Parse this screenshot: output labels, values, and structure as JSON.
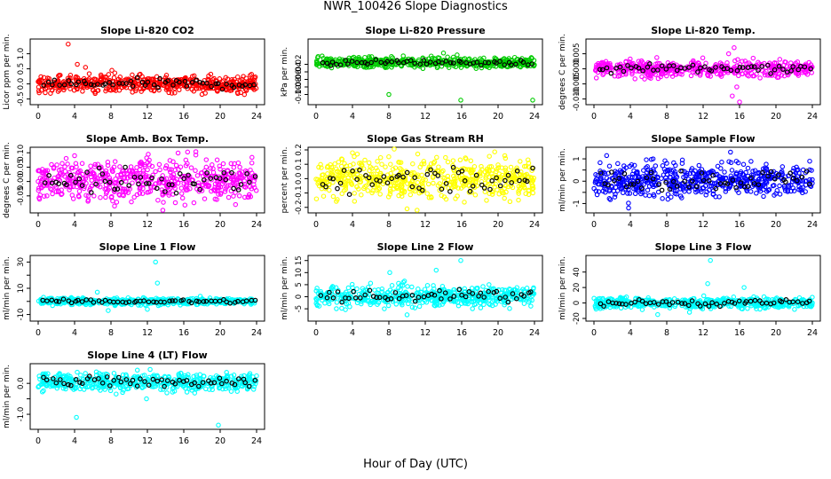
{
  "figure": {
    "title": "NWR_100426  Slope Diagnostics",
    "xlabel": "Hour of Day (UTC)"
  },
  "chart_data": [
    {
      "type": "scatter",
      "title": "Slope Li-820 CO2",
      "ylabel": "Licor ppm per min.",
      "xlim": [
        0,
        24
      ],
      "xticks": [
        "0",
        "4",
        "8",
        "12",
        "16",
        "20",
        "24"
      ],
      "ylim": [
        -0.6,
        1.4
      ],
      "yticks": [
        -0.5,
        0,
        0.5,
        1
      ],
      "ytick_labels": [
        "-0.5",
        "0.0",
        "0.5",
        "1.0"
      ],
      "color": "#ff0000",
      "series_center": 0.0,
      "series_spread": 0.14,
      "outliers": [
        {
          "x": 3.3,
          "y": 1.32
        },
        {
          "x": 4.3,
          "y": 0.65
        },
        {
          "x": 5.2,
          "y": 0.55
        },
        {
          "x": 2.2,
          "y": -0.25
        },
        {
          "x": 8.1,
          "y": 0.45
        }
      ],
      "n_points": 520,
      "n_black": 55
    },
    {
      "type": "scatter",
      "title": "Slope Li-820 Pressure",
      "ylabel": "kPa per min.",
      "xlim": [
        0,
        24
      ],
      "xticks": [
        "0",
        "4",
        "8",
        "12",
        "16",
        "20",
        "24"
      ],
      "ylim": [
        -0.12,
        0.04
      ],
      "yticks": [
        -0.1,
        -0.08,
        -0.06,
        -0.04,
        -0.02
      ],
      "ytick_labels": [
        "-0.10",
        "-0.08",
        "-0.06",
        "-0.04",
        "-0.02"
      ],
      "color": "#00cc00",
      "series_center": -0.015,
      "series_spread": 0.007,
      "outliers": [
        {
          "x": 8.0,
          "y": -0.1
        },
        {
          "x": 15.9,
          "y": -0.115
        },
        {
          "x": 23.8,
          "y": -0.115
        },
        {
          "x": 14.0,
          "y": 0.01
        },
        {
          "x": 15.5,
          "y": 0.005
        }
      ],
      "n_points": 480,
      "n_black": 55
    },
    {
      "type": "scatter",
      "title": "Slope Li-820 Temp.",
      "ylabel": "degrees C per min.",
      "xlim": [
        0,
        24
      ],
      "xticks": [
        "0",
        "4",
        "8",
        "12",
        "16",
        "20",
        "24"
      ],
      "ylim": [
        -0.011,
        0.009
      ],
      "yticks": [
        -0.01,
        -0.005,
        0,
        0.005
      ],
      "ytick_labels": [
        "-0.010",
        "-0.005",
        "0.000",
        "0.005"
      ],
      "color": "#ff00ff",
      "series_center": 0.0,
      "series_spread": 0.0013,
      "outliers": [
        {
          "x": 15.2,
          "y": -0.009
        },
        {
          "x": 15.4,
          "y": 0.007
        },
        {
          "x": 16.0,
          "y": -0.011
        },
        {
          "x": 14.8,
          "y": 0.005
        },
        {
          "x": 15.7,
          "y": -0.006
        }
      ],
      "n_points": 480,
      "n_black": 55
    },
    {
      "type": "scatter",
      "title": "Slope Amb. Box Temp.",
      "ylabel": "degrees C per min.",
      "xlim": [
        0,
        24
      ],
      "xticks": [
        "0",
        "4",
        "8",
        "12",
        "16",
        "20",
        "24"
      ],
      "ylim": [
        -0.1,
        0.11
      ],
      "yticks": [
        -0.05,
        0,
        0.05,
        0.1
      ],
      "ytick_labels": [
        "-0.05",
        "0.00",
        "0.05",
        "0.10"
      ],
      "color": "#ff00ff",
      "series_center": 0.005,
      "series_spread": 0.035,
      "outliers": [
        {
          "x": 12.1,
          "y": 0.095
        },
        {
          "x": 13.7,
          "y": -0.1
        },
        {
          "x": 4.0,
          "y": 0.09
        }
      ],
      "n_points": 560,
      "n_black": 55
    },
    {
      "type": "scatter",
      "title": "Slope Gas Stream RH",
      "ylabel": "percent per min.",
      "xlim": [
        0,
        24
      ],
      "xticks": [
        "0",
        "4",
        "8",
        "12",
        "16",
        "20",
        "24"
      ],
      "ylim": [
        -0.22,
        0.2
      ],
      "yticks": [
        -0.2,
        -0.1,
        0,
        0.1,
        0.2
      ],
      "ytick_labels": [
        "-0.2",
        "-0.1",
        "0.0",
        "0.1",
        "0.2"
      ],
      "color": "#ffff00",
      "series_center": 0.0,
      "series_spread": 0.07,
      "outliers": [
        {
          "x": 10.0,
          "y": -0.21
        },
        {
          "x": 11.1,
          "y": -0.22
        },
        {
          "x": 4.0,
          "y": 0.18
        }
      ],
      "n_points": 560,
      "n_black": 55
    },
    {
      "type": "scatter",
      "title": "Slope Sample Flow",
      "ylabel": "ml/min per min.",
      "xlim": [
        0,
        24
      ],
      "xticks": [
        "0",
        "4",
        "8",
        "12",
        "16",
        "20",
        "24"
      ],
      "ylim": [
        -1.3,
        1.4
      ],
      "yticks": [
        -1,
        -0.5,
        0,
        0.5,
        1
      ],
      "ytick_labels": [
        "-1",
        "",
        "0",
        "",
        "1"
      ],
      "color": "#0000ff",
      "series_center": 0.05,
      "series_spread": 0.38,
      "outliers": [
        {
          "x": 3.8,
          "y": -1.2
        },
        {
          "x": 15.0,
          "y": 1.3
        },
        {
          "x": 6.5,
          "y": 1.0
        }
      ],
      "n_points": 560,
      "n_black": 55
    },
    {
      "type": "scatter",
      "title": "Slope Line 1 Flow",
      "ylabel": "ml/min per min.",
      "xlim": [
        0,
        24
      ],
      "xticks": [
        "0",
        "4",
        "8",
        "12",
        "16",
        "20",
        "24"
      ],
      "ylim": [
        -13,
        33
      ],
      "yticks": [
        -10,
        0,
        10,
        20,
        30
      ],
      "ytick_labels": [
        "-10",
        "",
        "10",
        "",
        "30"
      ],
      "color": "#00ffff",
      "series_center": 0.0,
      "series_spread": 1.3,
      "outliers": [
        {
          "x": 12.9,
          "y": 30
        },
        {
          "x": 13.1,
          "y": 14
        },
        {
          "x": 6.5,
          "y": 7
        },
        {
          "x": 7.7,
          "y": -7
        },
        {
          "x": 12.0,
          "y": -6
        }
      ],
      "n_points": 500,
      "n_black": 55
    },
    {
      "type": "scatter",
      "title": "Slope Line 2 Flow",
      "ylabel": "ml/min per min.",
      "xlim": [
        0,
        24
      ],
      "xticks": [
        "0",
        "4",
        "8",
        "12",
        "16",
        "20",
        "24"
      ],
      "ylim": [
        -9,
        16
      ],
      "yticks": [
        -5,
        0,
        5,
        10,
        15
      ],
      "ytick_labels": [
        "-5",
        "0",
        "5",
        "10",
        "15"
      ],
      "color": "#00ffff",
      "series_center": 0.3,
      "series_spread": 2.2,
      "outliers": [
        {
          "x": 15.9,
          "y": 15
        },
        {
          "x": 8.1,
          "y": 10
        },
        {
          "x": 10.0,
          "y": -7.5
        },
        {
          "x": 13.2,
          "y": 11
        },
        {
          "x": 7.5,
          "y": -5
        }
      ],
      "n_points": 520,
      "n_black": 55
    },
    {
      "type": "scatter",
      "title": "Slope Line 3 Flow",
      "ylabel": "ml/min per min.",
      "xlim": [
        0,
        24
      ],
      "xticks": [
        "0",
        "4",
        "8",
        "12",
        "16",
        "20",
        "24"
      ],
      "ylim": [
        -20,
        58
      ],
      "yticks": [
        -20,
        0,
        20,
        40
      ],
      "ytick_labels": [
        "-20",
        "0",
        "20",
        "40"
      ],
      "color": "#00ffff",
      "series_center": 0.0,
      "series_spread": 3.5,
      "outliers": [
        {
          "x": 12.8,
          "y": 55
        },
        {
          "x": 16.5,
          "y": 20
        },
        {
          "x": 7.0,
          "y": -15
        },
        {
          "x": 10.5,
          "y": -12
        },
        {
          "x": 12.5,
          "y": 25
        }
      ],
      "n_points": 520,
      "n_black": 55
    },
    {
      "type": "scatter",
      "title": "Slope Line 4 (LT) Flow",
      "ylabel": "ml/min per min.",
      "xlim": [
        0,
        24
      ],
      "xticks": [
        "0",
        "4",
        "8",
        "12",
        "16",
        "20",
        "24"
      ],
      "ylim": [
        -1.4,
        0.55
      ],
      "yticks": [
        -1,
        -0.5,
        0
      ],
      "ytick_labels": [
        "-1.0",
        "",
        "0.0"
      ],
      "color": "#00ffff",
      "series_center": 0.05,
      "series_spread": 0.14,
      "outliers": [
        {
          "x": 4.2,
          "y": -1.1
        },
        {
          "x": 19.8,
          "y": -1.35
        },
        {
          "x": 11.9,
          "y": -0.5
        },
        {
          "x": 12.3,
          "y": 0.45
        }
      ],
      "n_points": 520,
      "n_black": 55
    }
  ]
}
